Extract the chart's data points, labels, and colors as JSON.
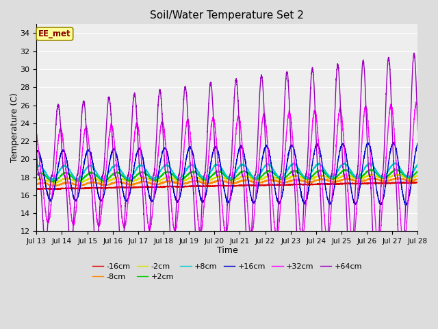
{
  "title": "Soil/Water Temperature Set 2",
  "xlabel": "Time",
  "ylabel": "Temperature (C)",
  "ylim": [
    12,
    35
  ],
  "yticks": [
    12,
    14,
    16,
    18,
    20,
    22,
    24,
    26,
    28,
    30,
    32,
    34
  ],
  "date_labels": [
    "Jul 13",
    "Jul 14",
    "Jul 15",
    "Jul 16",
    "Jul 17",
    "Jul 18",
    "Jul 19",
    "Jul 20",
    "Jul 21",
    "Jul 22",
    "Jul 23",
    "Jul 24",
    "Jul 25",
    "Jul 26",
    "Jul 27",
    "Jul 28"
  ],
  "series_order": [
    "-16cm",
    "-8cm",
    "-2cm",
    "+2cm",
    "+8cm",
    "+16cm",
    "+32cm",
    "+64cm"
  ],
  "colors": {
    "-16cm": "#dd0000",
    "-8cm": "#ff8800",
    "-2cm": "#dddd00",
    "+2cm": "#00cc00",
    "+8cm": "#00cccc",
    "+16cm": "#0000cc",
    "+32cm": "#ff00ff",
    "+64cm": "#9900bb"
  },
  "annotation_text": "EE_met",
  "annotation_bg": "#ffff99",
  "annotation_border": "#998800",
  "annotation_text_color": "#880000",
  "bg_color": "#dddddd",
  "plot_bg": "#eeeeee",
  "grid_color": "#ffffff"
}
